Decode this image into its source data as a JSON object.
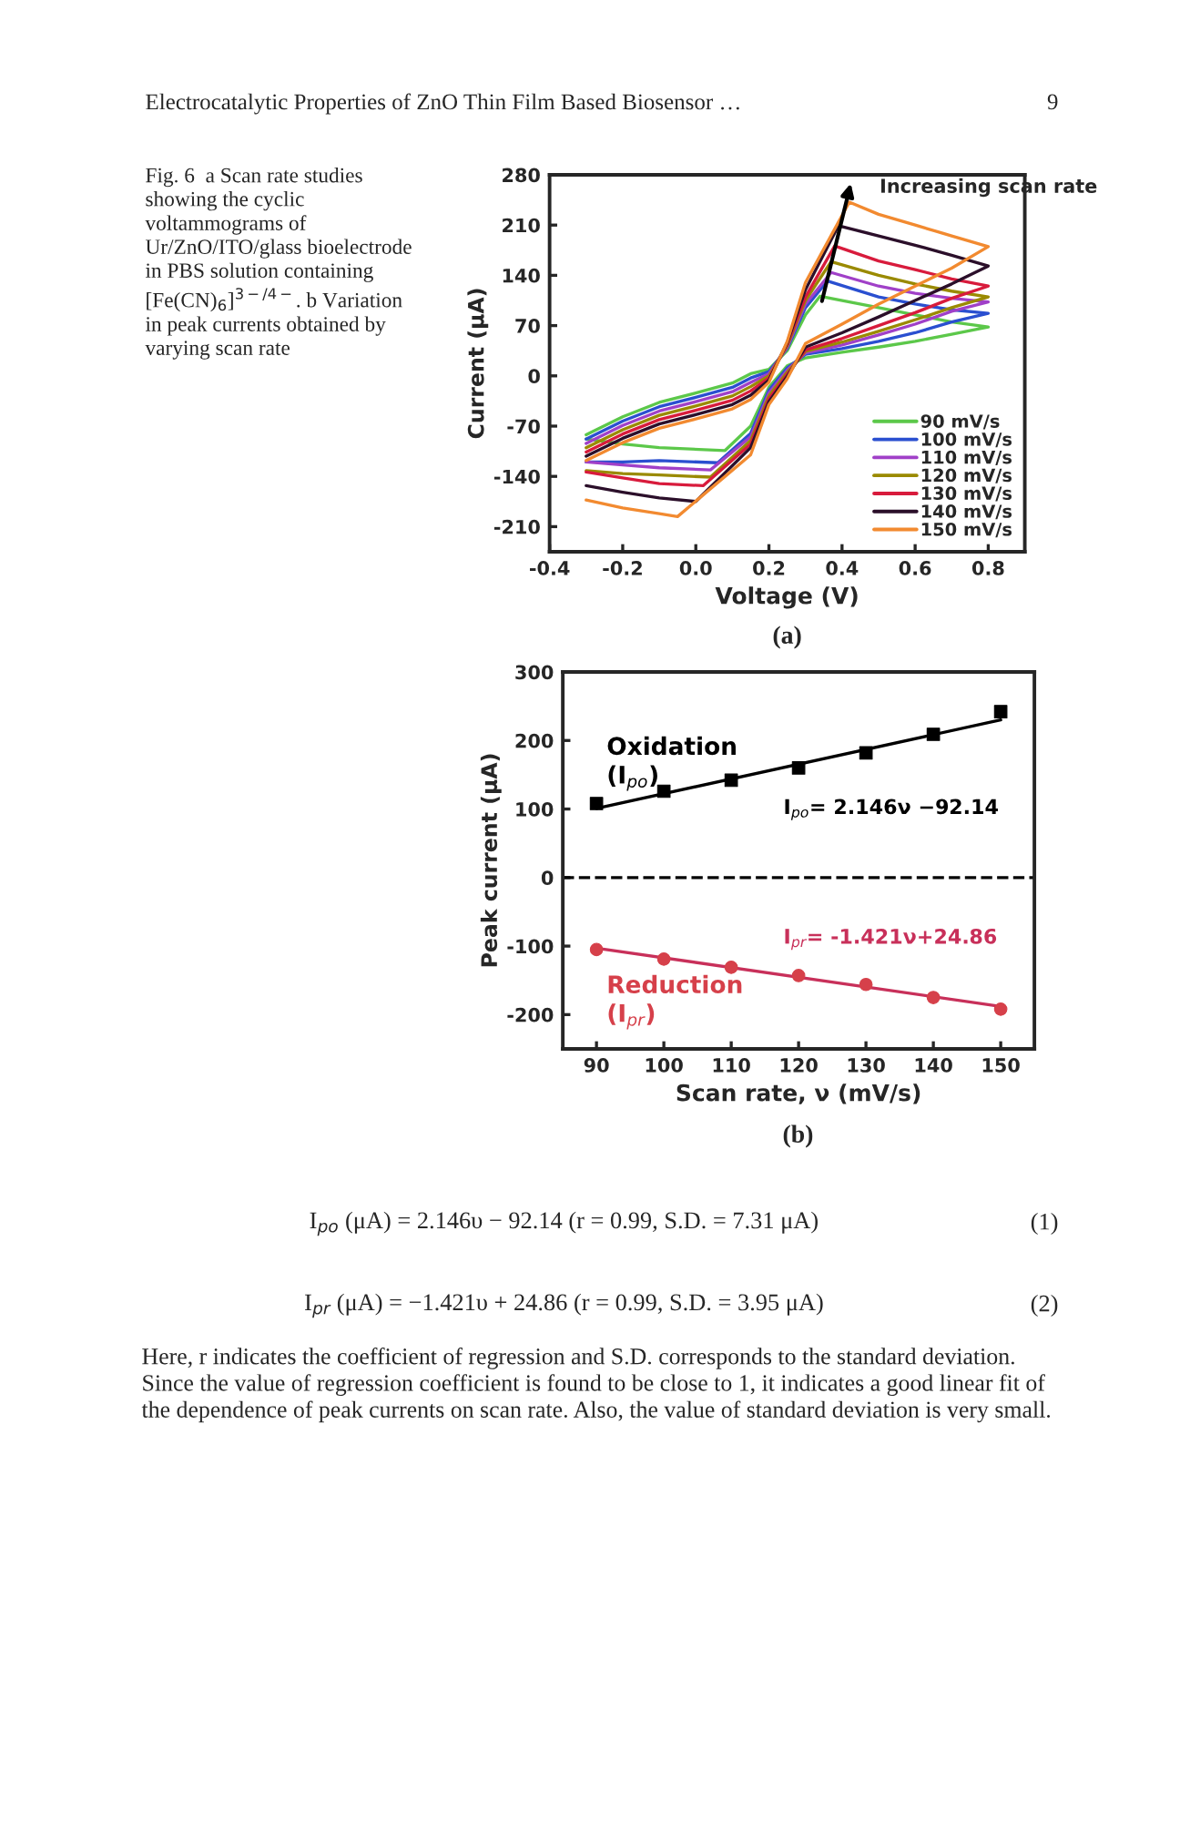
{
  "chart_data": [
    {
      "type": "line",
      "xlabel": "Voltage (V)",
      "ylabel": "Current (μA)",
      "xlim": [
        -0.4,
        0.9
      ],
      "ylim": [
        -245,
        280
      ],
      "xticks": [
        -0.4,
        -0.2,
        {
          "value": 0,
          "label": "0.0"
        },
        0.2,
        0.4,
        0.6,
        0.8
      ],
      "yticks": [
        -210,
        -140,
        -70,
        0,
        70,
        140,
        210,
        280
      ],
      "legend": "bottom right",
      "series": [
        {
          "name": "90 mV/s",
          "color": "#5cc84a",
          "x": [
            -0.3,
            -0.2,
            -0.1,
            0.0,
            0.1,
            0.15,
            0.2,
            0.25,
            0.3,
            0.34,
            0.5,
            0.6,
            0.7,
            0.8,
            0.7,
            0.6,
            0.5,
            0.4,
            0.3,
            0.25,
            0.2,
            0.15,
            0.08,
            -0.1,
            -0.2,
            -0.3
          ],
          "values": [
            -82,
            -57,
            -37,
            -24,
            -10,
            3,
            9,
            35,
            85,
            111,
            95,
            85,
            75,
            68,
            58,
            48,
            40,
            33,
            25,
            14,
            -16,
            -70,
            -104,
            -100,
            -95,
            -88
          ]
        },
        {
          "name": "100 mV/s",
          "color": "#2a4fd0",
          "x": [
            -0.3,
            -0.2,
            -0.1,
            0.0,
            0.1,
            0.15,
            0.2,
            0.25,
            0.3,
            0.36,
            0.5,
            0.6,
            0.7,
            0.8,
            0.7,
            0.6,
            0.5,
            0.4,
            0.3,
            0.25,
            0.2,
            0.15,
            0.06,
            -0.1,
            -0.2,
            -0.3
          ],
          "values": [
            -88,
            -63,
            -43,
            -30,
            -16,
            -3,
            6,
            38,
            95,
            132,
            110,
            100,
            92,
            87,
            75,
            60,
            48,
            38,
            30,
            11,
            -20,
            -80,
            -121,
            -118,
            -120,
            -120
          ]
        },
        {
          "name": "110 mV/s",
          "color": "#a040c8",
          "x": [
            -0.3,
            -0.2,
            -0.1,
            0.0,
            0.1,
            0.15,
            0.2,
            0.25,
            0.3,
            0.37,
            0.5,
            0.6,
            0.7,
            0.8,
            0.7,
            0.6,
            0.5,
            0.4,
            0.3,
            0.25,
            0.2,
            0.15,
            0.04,
            -0.1,
            -0.2,
            -0.3
          ],
          "values": [
            -94,
            -69,
            -49,
            -36,
            -22,
            -9,
            3,
            40,
            100,
            144,
            125,
            115,
            108,
            103,
            90,
            72,
            57,
            43,
            32,
            8,
            -24,
            -85,
            -131,
            -128,
            -124,
            -120
          ]
        },
        {
          "name": "120 mV/s",
          "color": "#9a8a00",
          "x": [
            -0.3,
            -0.2,
            -0.1,
            0.0,
            0.1,
            0.15,
            0.2,
            0.25,
            0.3,
            0.37,
            0.5,
            0.6,
            0.7,
            0.8,
            0.7,
            0.6,
            0.5,
            0.4,
            0.3,
            0.25,
            0.2,
            0.15,
            0.04,
            -0.1,
            -0.2,
            -0.3
          ],
          "values": [
            -100,
            -75,
            -55,
            -42,
            -28,
            -15,
            0,
            42,
            105,
            159,
            140,
            128,
            118,
            110,
            95,
            78,
            62,
            47,
            34,
            5,
            -28,
            -90,
            -141,
            -138,
            -136,
            -132
          ]
        },
        {
          "name": "130 mV/s",
          "color": "#d81b3c",
          "x": [
            -0.3,
            -0.2,
            -0.1,
            0.0,
            0.1,
            0.15,
            0.2,
            0.25,
            0.3,
            0.38,
            0.5,
            0.6,
            0.7,
            0.8,
            0.7,
            0.6,
            0.5,
            0.4,
            0.3,
            0.25,
            0.2,
            0.15,
            0.02,
            -0.1,
            -0.2,
            -0.3
          ],
          "values": [
            -106,
            -81,
            -61,
            -48,
            -34,
            -21,
            -3,
            44,
            110,
            181,
            160,
            148,
            135,
            125,
            108,
            88,
            70,
            52,
            36,
            2,
            -32,
            -95,
            -153,
            -150,
            -142,
            -134
          ]
        },
        {
          "name": "140 mV/s",
          "color": "#2b0f2a",
          "x": [
            -0.3,
            -0.2,
            -0.1,
            0.0,
            0.1,
            0.15,
            0.2,
            0.25,
            0.3,
            0.39,
            0.5,
            0.6,
            0.7,
            0.8,
            0.7,
            0.6,
            0.5,
            0.4,
            0.3,
            0.25,
            0.2,
            0.15,
            0.0,
            -0.1,
            -0.2,
            -0.3
          ],
          "values": [
            -112,
            -87,
            -67,
            -54,
            -40,
            -27,
            -6,
            46,
            120,
            209,
            195,
            182,
            168,
            153,
            128,
            105,
            82,
            60,
            40,
            -1,
            -36,
            -100,
            -175,
            -170,
            -162,
            -153
          ]
        },
        {
          "name": "150 mV/s",
          "color": "#f28a30",
          "x": [
            -0.3,
            -0.2,
            -0.1,
            0.0,
            0.1,
            0.15,
            0.2,
            0.25,
            0.3,
            0.42,
            0.5,
            0.6,
            0.7,
            0.8,
            0.7,
            0.6,
            0.5,
            0.4,
            0.3,
            0.25,
            0.2,
            0.15,
            -0.05,
            -0.1,
            -0.2,
            -0.3
          ],
          "values": [
            -118,
            -93,
            -73,
            -60,
            -46,
            -33,
            -9,
            48,
            130,
            242,
            225,
            210,
            195,
            180,
            150,
            125,
            100,
            72,
            45,
            -4,
            -40,
            -110,
            -196,
            -192,
            -184,
            -173
          ]
        }
      ],
      "annotations": [
        "Electrocatalytic Properties of ZnO Thin Film Based Biosensor …",
        "9",
        "Fig. 6  a Scan rate studies showing the cyclic voltammograms of Ur/ZnO/ITO/glass bioelectrode in PBS solution containing [Fe(CN)$_{6}$]$^{3−/4−}$. b Variation in peak currents obtained by varying scan rate",
        "Increasing scan rate",
        "(a)"
      ]
    },
    {
      "type": "scatter",
      "xlabel": "Scan rate, ν (mV/s)",
      "ylabel": "Peak current (μA)",
      "xlim": [
        85,
        155
      ],
      "ylim": [
        -250,
        300
      ],
      "xticks": [
        90,
        100,
        110,
        120,
        130,
        140,
        150
      ],
      "yticks": [
        -200,
        -100,
        0,
        100,
        200,
        300
      ],
      "series": [
        {
          "name": "Oxidation\n(I$_{po}$)",
          "color": "#000000",
          "marker": "square",
          "x": [
            90,
            100,
            110,
            120,
            130,
            140,
            150
          ],
          "values": [
            108,
            126,
            142,
            160,
            182,
            209,
            242
          ]
        },
        {
          "name": "Reduction\n(I$_{pr}$)",
          "color": "#d6404a",
          "marker": "circle",
          "x": [
            90,
            100,
            110,
            120,
            130,
            140,
            150
          ],
          "values": [
            -105,
            -119,
            -131,
            -143,
            -156,
            -175,
            -192
          ]
        },
        {
          "type": "line",
          "name": "I$_{po}$= 2.146ν −92.14",
          "color": "#000000",
          "x": [
            90,
            150
          ],
          "values": [
            101,
            230
          ]
        },
        {
          "type": "line",
          "name": "I$_{pr}$= -1.421ν+24.86",
          "color": "#c8305a",
          "x": [
            90,
            150
          ],
          "values": [
            -103,
            -188
          ]
        }
      ],
      "ref_lines": [
        {
          "axis": "y",
          "value": 0,
          "color": "#000000",
          "line_style": "dashed"
        }
      ],
      "annotations": [
        "(b)",
        "I$_{po}$ (μA) = 2.146υ − 92.14 (r = 0.99, S.D. = 7.31 μA)",
        "(1)",
        "I$_{pr}$ (μA) = −1.421υ + 24.86 (r = 0.99, S.D. = 3.95 μA)",
        "(2)",
        "Here, r indicates the coefficient of regression and S.D. corresponds to the standard deviation. Since the value of regression coefficient is found to be close to 1, it indicates a good linear fit of the dependence of peak currents on scan rate. Also, the value of standard deviation is very small."
      ]
    }
  ]
}
